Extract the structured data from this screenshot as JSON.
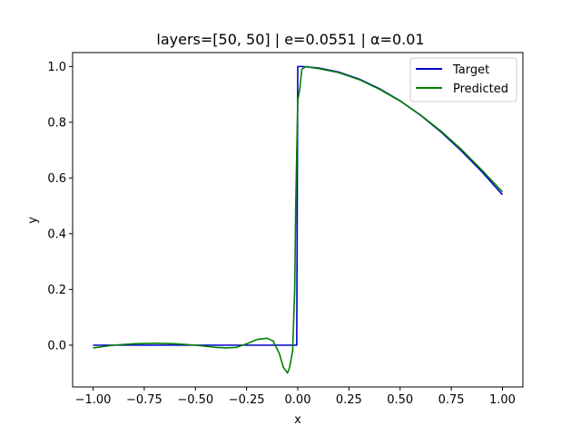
{
  "chart_data": {
    "type": "line",
    "title": "layers=[50, 50] | e=0.0551 | α=0.01",
    "xlabel": "x",
    "ylabel": "y",
    "xlim": [
      -1.1,
      1.1
    ],
    "ylim": [
      -0.15,
      1.05
    ],
    "xticks": [
      -1.0,
      -0.75,
      -0.5,
      -0.25,
      0.0,
      0.25,
      0.5,
      0.75,
      1.0
    ],
    "xtick_labels": [
      "−1.00",
      "−0.75",
      "−0.50",
      "−0.25",
      "0.00",
      "0.25",
      "0.50",
      "0.75",
      "1.00"
    ],
    "yticks": [
      0.0,
      0.2,
      0.4,
      0.6,
      0.8,
      1.0
    ],
    "ytick_labels": [
      "0.0",
      "0.2",
      "0.4",
      "0.6",
      "0.8",
      "1.0"
    ],
    "grid": false,
    "legend_position": "top-right",
    "series": [
      {
        "name": "Target",
        "color": "#0000cc",
        "x": [
          -1.0,
          -0.02,
          -0.005,
          0.0,
          0.005,
          0.02,
          0.1,
          0.2,
          0.3,
          0.4,
          0.5,
          0.6,
          0.7,
          0.8,
          0.9,
          1.0
        ],
        "y": [
          0.0,
          0.0,
          0.0,
          1.0,
          1.0,
          1.0,
          0.995,
          0.98,
          0.955,
          0.92,
          0.877,
          0.825,
          0.765,
          0.697,
          0.622,
          0.54
        ]
      },
      {
        "name": "Predicted",
        "color": "#008000",
        "x": [
          -1.0,
          -0.9,
          -0.8,
          -0.7,
          -0.6,
          -0.5,
          -0.4,
          -0.35,
          -0.3,
          -0.25,
          -0.2,
          -0.15,
          -0.12,
          -0.09,
          -0.07,
          -0.05,
          -0.04,
          -0.025,
          -0.015,
          -0.01,
          0.0,
          0.01,
          0.02,
          0.04,
          0.06,
          0.1,
          0.2,
          0.3,
          0.4,
          0.5,
          0.6,
          0.7,
          0.8,
          0.9,
          1.0
        ],
        "y": [
          -0.01,
          0.0,
          0.005,
          0.007,
          0.005,
          0.0,
          -0.008,
          -0.01,
          -0.008,
          0.005,
          0.02,
          0.025,
          0.015,
          -0.03,
          -0.08,
          -0.1,
          -0.08,
          -0.02,
          0.2,
          0.5,
          0.88,
          0.92,
          0.99,
          1.0,
          0.997,
          0.993,
          0.978,
          0.953,
          0.918,
          0.876,
          0.826,
          0.768,
          0.702,
          0.628,
          0.55
        ]
      }
    ]
  }
}
